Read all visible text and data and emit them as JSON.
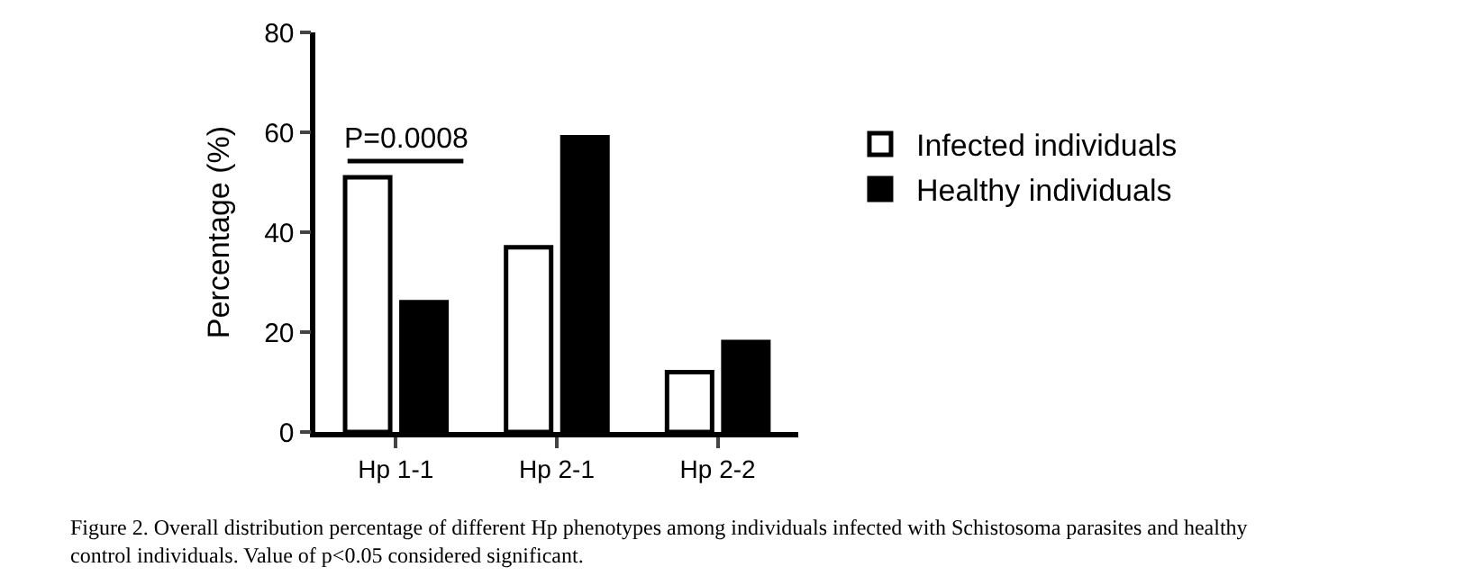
{
  "chart_data": {
    "type": "bar",
    "ylabel": "Percentage (%)",
    "categories": [
      "Hp 1-1",
      "Hp 2-1",
      "Hp 2-2"
    ],
    "series": [
      {
        "name": "Infected individuals",
        "color": "#ffffff",
        "values": [
          51,
          37,
          12
        ]
      },
      {
        "name": "Healthy individuals",
        "color": "#000000",
        "values": [
          26,
          59,
          18
        ]
      }
    ],
    "ylim": [
      0,
      80
    ],
    "yticks": [
      0,
      20,
      40,
      60,
      80
    ],
    "legend": "right",
    "annotations": [
      "P=0.0008",
      "Figure 2. Overall distribution percentage of different Hp phenotypes among individuals infected with Schistosoma parasites and healthy control individuals. Value of p<0.05 considered significant."
    ]
  }
}
